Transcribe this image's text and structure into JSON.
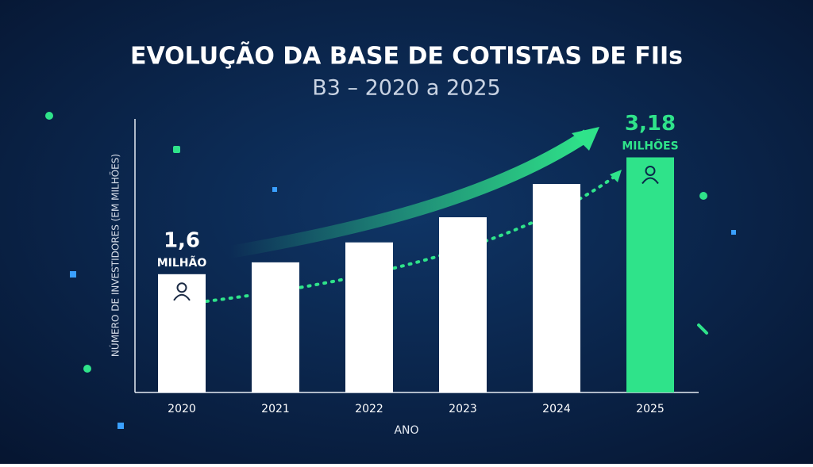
{
  "chart_data": {
    "type": "bar",
    "title": "EVOLUÇÃO DA BASE DE COTISTAS DE FIIs",
    "subtitle": "B3 – 2020 a 2025",
    "y_label": "NÚMERO DE INVESTIDORES (EM MILHÕES)",
    "x_label": "ANO",
    "categories": [
      "2020",
      "2021",
      "2022",
      "2023",
      "2024",
      "2025"
    ],
    "values": [
      1.6,
      1.76,
      2.03,
      2.37,
      2.82,
      3.18
    ],
    "value_labels": [
      "1,6",
      null,
      null,
      null,
      null,
      "3,18"
    ],
    "value_units": [
      "MILHÃO",
      null,
      null,
      null,
      null,
      "MILHÕES"
    ],
    "colors": [
      "#ffffff",
      "#ffffff",
      "#ffffff",
      "#ffffff",
      "#ffffff",
      "#2fe38a"
    ],
    "ylim": [
      0,
      3.7
    ]
  }
}
